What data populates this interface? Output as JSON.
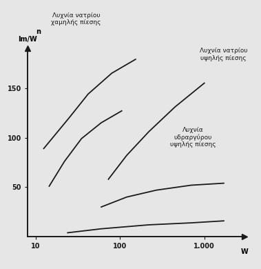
{
  "chart_data": {
    "type": "line",
    "ylabel_symbol": "n",
    "ylabel": "lm/W",
    "xlabel": "W",
    "log": "x",
    "grid": false,
    "xlim": [
      8,
      3000
    ],
    "xticks": [
      10,
      100,
      {
        "value": 1000,
        "label": "1.000"
      }
    ],
    "ylim": [
      0,
      190
    ],
    "yticks": [
      50,
      100,
      150
    ],
    "series": [
      {
        "name": "Λυχνία νατρίου\nχαμηλής πίεσης",
        "color": "#1a1a1a",
        "x": [
          12.5,
          25,
          42,
          80,
          153
        ],
        "values": [
          89,
          120,
          144,
          165,
          179
        ]
      },
      {
        "name": null,
        "color": "#1a1a1a",
        "x": [
          14.5,
          22,
          35,
          60,
          105
        ],
        "values": [
          51,
          76,
          99,
          115,
          127
        ]
      },
      {
        "name": "Λυχνία νατρίου\nυψηλής πίεσης",
        "color": "#1a1a1a",
        "x": [
          73,
          120,
          220,
          450,
          1000
        ],
        "values": [
          58,
          82,
          106,
          131,
          155
        ]
      },
      {
        "name": "Λυχνία\nυδραργύρου\nυψηλής πίεσης",
        "color": "#1a1a1a",
        "x": [
          60,
          120,
          270,
          700,
          1700
        ],
        "values": [
          30,
          40,
          47,
          52,
          54
        ]
      },
      {
        "name": null,
        "color": "#1a1a1a",
        "x": [
          24,
          60,
          220,
          700,
          1700
        ],
        "values": [
          4,
          8,
          12,
          14,
          16
        ]
      }
    ]
  }
}
